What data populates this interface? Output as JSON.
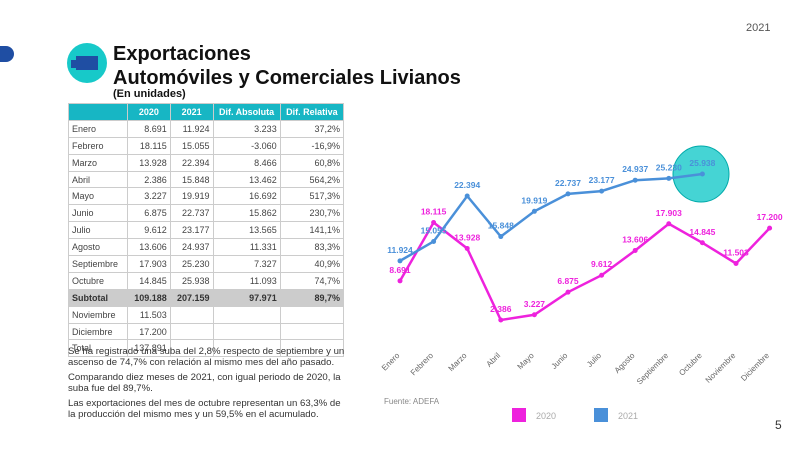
{
  "header": {
    "year": "2021",
    "title_line1": "Exportaciones",
    "title_line2": "Automóviles y Comerciales Livianos",
    "subtitle": "(En unidades)",
    "page": "5"
  },
  "table": {
    "header": [
      "",
      "2020",
      "2021",
      "Dif. Absoluta",
      "Dif. Relativa"
    ],
    "rows": [
      [
        "Enero",
        "8.691",
        "11.924",
        "3.233",
        "37,2%"
      ],
      [
        "Febrero",
        "18.115",
        "15.055",
        "-3.060",
        "-16,9%"
      ],
      [
        "Marzo",
        "13.928",
        "22.394",
        "8.466",
        "60,8%"
      ],
      [
        "Abril",
        "2.386",
        "15.848",
        "13.462",
        "564,2%"
      ],
      [
        "Mayo",
        "3.227",
        "19.919",
        "16.692",
        "517,3%"
      ],
      [
        "Junio",
        "6.875",
        "22.737",
        "15.862",
        "230,7%"
      ],
      [
        "Julio",
        "9.612",
        "23.177",
        "13.565",
        "141,1%"
      ],
      [
        "Agosto",
        "13.606",
        "24.937",
        "11.331",
        "83,3%"
      ],
      [
        "Septiembre",
        "17.903",
        "25.230",
        "7.327",
        "40,9%"
      ],
      [
        "Octubre",
        "14.845",
        "25.938",
        "11.093",
        "74,7%"
      ],
      [
        "Subtotal",
        "109.188",
        "207.159",
        "97.971",
        "89,7%"
      ],
      [
        "Noviembre",
        "11.503",
        "",
        "",
        ""
      ],
      [
        "Diciembre",
        "17.200",
        "",
        "",
        ""
      ],
      [
        "Total",
        "137.891",
        "",
        "",
        ""
      ]
    ]
  },
  "notes": [
    "Se ha registrado una suba del 2,8% respecto de septiembre y un ascenso de 74,7% con relación al mismo mes del año pasado.",
    "Comparando diez meses de 2021, con igual periodo de 2020, la suba fue del 89,7%.",
    "Las exportaciones del mes de octubre representan un 63,3% de la producción del mismo mes y un 59,5% en el acumulado."
  ],
  "chart_data": {
    "type": "line",
    "source": "Fuente: ADEFA",
    "categories": [
      "Enero",
      "Febrero",
      "Marzo",
      "Abril",
      "Mayo",
      "Junio",
      "Julio",
      "Agosto",
      "Septiembre",
      "Octubre",
      "Noviembre",
      "Diciembre"
    ],
    "series": [
      {
        "name": "2020",
        "color": "#ee22dd",
        "values": [
          8691,
          18115,
          13928,
          2386,
          3227,
          6875,
          9612,
          13606,
          17903,
          14845,
          11503,
          17200
        ],
        "value_labels": [
          "8.691",
          "18.115",
          "13.928",
          "2.386",
          "3.227",
          "6.875",
          "9.612",
          "13.606",
          "17.903",
          "14.845",
          "11.503",
          "17.200"
        ]
      },
      {
        "name": "2021",
        "color": "#4a90d9",
        "values": [
          11924,
          15055,
          22394,
          15848,
          19919,
          22737,
          23177,
          24937,
          25230,
          25938,
          null,
          null
        ],
        "value_labels": [
          "11.924",
          "15.055",
          "22.394",
          "15.848",
          "19.919",
          "22.737",
          "23.177",
          "24.937",
          "25.230",
          "25.938",
          null,
          null
        ]
      }
    ],
    "legend": "bottom"
  }
}
